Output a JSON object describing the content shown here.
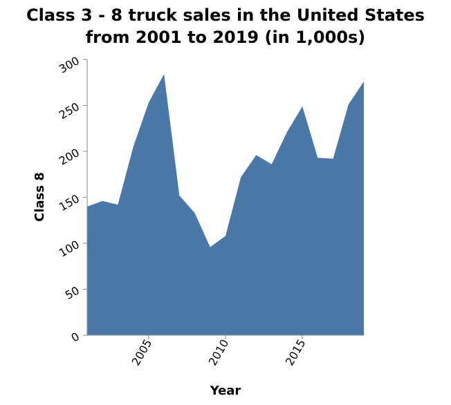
{
  "chart_data": {
    "type": "area",
    "title_lines": [
      "Class 3 - 8 truck sales in the United States",
      "from 2001 to 2019 (in 1,000s)"
    ],
    "xlabel": "Year",
    "ylabel": "Class 8",
    "x": [
      2001,
      2002,
      2003,
      2004,
      2005,
      2006,
      2007,
      2008,
      2009,
      2010,
      2011,
      2012,
      2013,
      2014,
      2015,
      2016,
      2017,
      2018,
      2019
    ],
    "series": [
      {
        "values": [
          140,
          146,
          142,
          205,
          253,
          284,
          152,
          133,
          96,
          108,
          172,
          196,
          186,
          221,
          249,
          193,
          192,
          251,
          276
        ],
        "color": "#4c78a8"
      }
    ],
    "xlim": [
      2001,
      2019
    ],
    "ylim": [
      0,
      300
    ],
    "xticks": [
      2005,
      2010,
      2015
    ],
    "yticks": [
      0,
      50,
      100,
      150,
      200,
      250,
      300
    ],
    "grid": false,
    "legend": "none"
  }
}
